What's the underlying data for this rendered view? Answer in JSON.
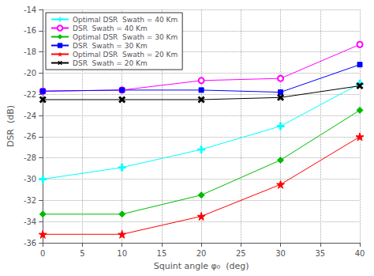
{
  "chart_data": {
    "type": "line",
    "xlabel": "Squint angle φ₀  (deg)",
    "ylabel": "DSR  (dB)",
    "x": [
      0,
      10,
      20,
      30,
      40
    ],
    "series": [
      {
        "name": "Optimal DSR  Swath = 40 Km",
        "color": "cyan",
        "marker": "plus",
        "values": [
          -30.0,
          -28.9,
          -27.2,
          -25.0,
          -21.0
        ]
      },
      {
        "name": "DSR  Swath = 40 Km",
        "color": "#ff00ff",
        "marker": "circle-open",
        "values": [
          -21.7,
          -21.6,
          -20.7,
          -20.5,
          -17.3
        ]
      },
      {
        "name": "Optimal DSR  Swath = 30 Km",
        "color": "#00bb00",
        "marker": "diamond",
        "values": [
          -33.3,
          -33.3,
          -31.5,
          -28.2,
          -23.5
        ]
      },
      {
        "name": "DSR  Swath = 30 Km",
        "color": "blue",
        "marker": "square",
        "values": [
          -21.7,
          -21.6,
          -21.6,
          -21.8,
          -19.2
        ]
      },
      {
        "name": "Optimal DSR  Swath = 20 Km",
        "color": "red",
        "marker": "star",
        "values": [
          -35.2,
          -35.2,
          -33.5,
          -30.5,
          -26.0
        ]
      },
      {
        "name": "DSR  Swath = 20 Km",
        "color": "black",
        "marker": "x",
        "values": [
          -22.5,
          -22.5,
          -22.5,
          -22.3,
          -21.2
        ]
      }
    ],
    "xlim": [
      0,
      40
    ],
    "ylim": [
      -36,
      -14
    ],
    "xticks": [
      0,
      5,
      10,
      15,
      20,
      25,
      30,
      35,
      40
    ],
    "yticks": [
      -36,
      -34,
      -32,
      -30,
      -28,
      -26,
      -24,
      -22,
      -20,
      -18,
      -16,
      -14
    ],
    "grid": true,
    "legend": "upper left"
  }
}
